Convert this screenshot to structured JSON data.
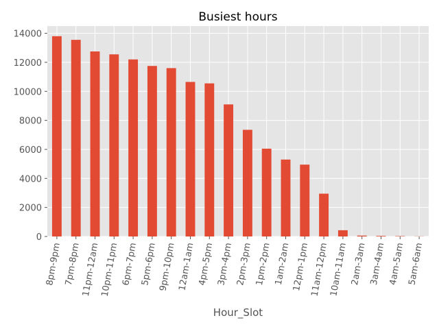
{
  "chart_data": {
    "type": "bar",
    "title": "Busiest hours",
    "xlabel": "Hour_Slot",
    "ylabel": "",
    "categories": [
      "8pm-9pm",
      "7pm-8pm",
      "11pm-12am",
      "10pm-11pm",
      "6pm-7pm",
      "5pm-6pm",
      "9pm-10pm",
      "12am-1am",
      "4pm-5pm",
      "3pm-4pm",
      "2pm-3pm",
      "1pm-2pm",
      "1am-2am",
      "12pm-1pm",
      "11am-12pm",
      "10am-11am",
      "2am-3am",
      "3am-4am",
      "4am-5am",
      "5am-6am"
    ],
    "values": [
      13800,
      13550,
      12750,
      12550,
      12200,
      11750,
      11600,
      10650,
      10550,
      9100,
      7350,
      6050,
      5300,
      4950,
      2950,
      430,
      60,
      40,
      25,
      10
    ],
    "ylim": [
      0,
      14500
    ],
    "yticks": [
      0,
      2000,
      4000,
      6000,
      8000,
      10000,
      12000,
      14000
    ],
    "grid": true,
    "bar_color": "#E24A33",
    "background_color": "#E5E5E5",
    "grid_color": "#FFFFFF"
  }
}
